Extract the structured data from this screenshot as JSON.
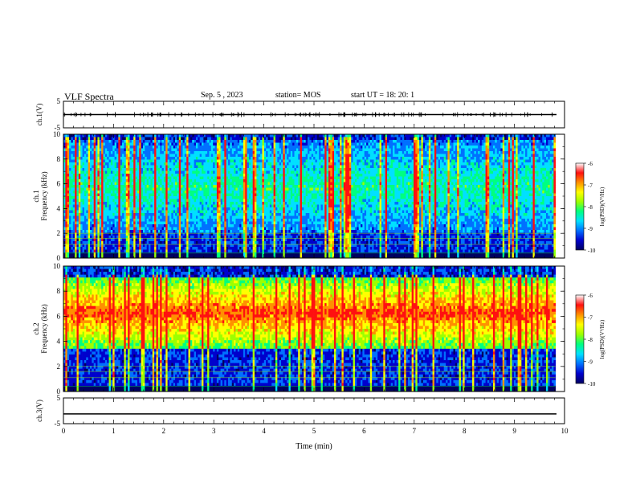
{
  "header": {
    "title": "VLF Spectra",
    "date": "Sep. 5 , 2023",
    "station": "station= MOS",
    "start": "start UT = 18: 20: 1"
  },
  "colors": {
    "spectrogram_scale": [
      "#000060",
      "#0000cc",
      "#0070ff",
      "#00e0ff",
      "#00ff80",
      "#9cff00",
      "#ffff00",
      "#ff9000",
      "#ff1010",
      "#ffffff"
    ]
  },
  "chart_data": [
    {
      "type": "line",
      "name": "ch1-waveform",
      "ylabel": "ch.1(V)",
      "ylim": [
        -5,
        5
      ],
      "yticks": [
        "5",
        "-5"
      ],
      "xlim": [
        0,
        10
      ],
      "level": 0,
      "grid": false
    },
    {
      "type": "heatmap",
      "name": "ch1-spectrogram",
      "ylabel_lines": [
        "ch.1",
        "Frequency (kHz)"
      ],
      "ylim": [
        0,
        10
      ],
      "yticks": [
        "0",
        "2",
        "4",
        "6",
        "8",
        "10"
      ],
      "xlim": [
        0,
        10
      ],
      "data_end_min": 9.82,
      "colorbar": {
        "label": "log(PSD)(V²/Hz)",
        "range": [
          -10,
          -6
        ],
        "ticks": [
          "-6",
          "-7",
          "-8",
          "-9",
          "-10"
        ]
      },
      "activity_band_khz": [
        2,
        9.5
      ]
    },
    {
      "type": "heatmap",
      "name": "ch2-spectrogram",
      "ylabel_lines": [
        "ch.2",
        "Frequency (kHz)"
      ],
      "ylim": [
        0,
        10
      ],
      "yticks": [
        "0",
        "2",
        "4",
        "6",
        "8",
        "10"
      ],
      "xlim": [
        0,
        10
      ],
      "data_end_min": 9.82,
      "colorbar": {
        "label": "log(PSD)(V²/Hz)",
        "range": [
          -10,
          -6
        ],
        "ticks": [
          "-6",
          "-7",
          "-8",
          "-9",
          "-10"
        ]
      },
      "activity_band_khz": [
        3.5,
        9
      ]
    },
    {
      "type": "line",
      "name": "ch3-waveform",
      "ylabel": "ch.3(V)",
      "ylim": [
        -5,
        5
      ],
      "yticks": [
        "5",
        "-5"
      ],
      "xlim": [
        0,
        10
      ],
      "level": -1.2,
      "grid": false
    }
  ],
  "xaxis": {
    "label": "Time (min)",
    "ticks": [
      "0",
      "1",
      "2",
      "3",
      "4",
      "5",
      "6",
      "7",
      "8",
      "9",
      "10"
    ]
  }
}
